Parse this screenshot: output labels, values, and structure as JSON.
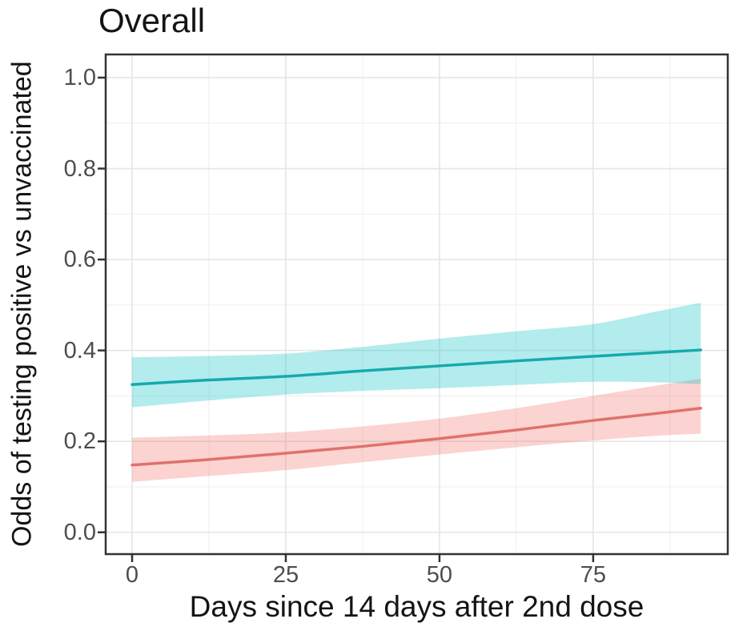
{
  "chart_data": {
    "type": "line",
    "title": "Overall",
    "xlabel": "Days since 14 days after 2nd dose",
    "ylabel": "Odds of testing positive vs unvaccinated",
    "legend_position": "none",
    "grid": "major+minor",
    "background_color": "#ffffff",
    "panel_border_color": "#333333",
    "major_grid_color": "#e5e5e5",
    "minor_grid_color": "#f1f1f1",
    "tick_mark_color": "#333333",
    "tick_label_color": "#4d4d4d",
    "text_color": "#141414",
    "xlim": [
      -4.3,
      96.9
    ],
    "ylim": [
      -0.048,
      1.051
    ],
    "x_ticks": [
      0,
      25,
      50,
      75
    ],
    "x_tick_labels": [
      "0",
      "25",
      "50",
      "75"
    ],
    "x_minor_ticks": [
      12.5,
      37.5,
      62.5,
      87.5
    ],
    "y_ticks": [
      0.0,
      0.2,
      0.4,
      0.6,
      0.8,
      1.0
    ],
    "y_tick_labels": [
      "0.0",
      "0.2",
      "0.4",
      "0.6",
      "0.8",
      "1.0"
    ],
    "y_minor_ticks": [
      0.1,
      0.3,
      0.5,
      0.7,
      0.9
    ],
    "x": [
      0,
      12.5,
      25,
      37.5,
      50,
      62.5,
      75,
      85,
      92.5
    ],
    "series": [
      {
        "name": "red-series",
        "line_color": "#E0716C",
        "fill_color": "rgba(244,118,112,0.32)",
        "values": [
          0.148,
          0.16,
          0.174,
          0.189,
          0.206,
          0.225,
          0.246,
          0.261,
          0.273
        ],
        "ci_lower": [
          0.111,
          0.124,
          0.137,
          0.154,
          0.171,
          0.187,
          0.202,
          0.212,
          0.217
        ],
        "ci_upper": [
          0.208,
          0.213,
          0.22,
          0.233,
          0.25,
          0.273,
          0.3,
          0.322,
          0.338
        ]
      },
      {
        "name": "teal-series",
        "line_color": "#17A9AD",
        "fill_color": "rgba(0,191,196,0.30)",
        "values": [
          0.325,
          0.335,
          0.343,
          0.355,
          0.366,
          0.377,
          0.387,
          0.395,
          0.401
        ],
        "ci_lower": [
          0.275,
          0.29,
          0.303,
          0.311,
          0.317,
          0.324,
          0.331,
          0.33,
          0.326
        ],
        "ci_upper": [
          0.385,
          0.388,
          0.393,
          0.408,
          0.426,
          0.442,
          0.458,
          0.485,
          0.505
        ]
      }
    ]
  }
}
